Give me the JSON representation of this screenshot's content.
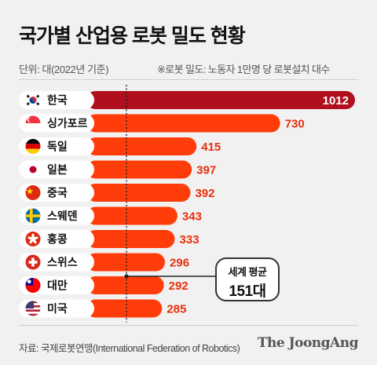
{
  "header": {
    "title": "국가별 산업용 로봇 밀도 현황",
    "unit_note": "단위: 대(2022년 기준)",
    "definition_note": "※로봇 밀도: 노동자 1만명 당 로봇설치 대수"
  },
  "callout": {
    "line1": "세계 평균",
    "line2": "151대"
  },
  "footer": {
    "source": "자료: 국제로봇연맹(International Federation of Robotics)",
    "logo": "The JoongAng"
  },
  "colors": {
    "highlight_bar": "#b00f1e",
    "bar": "#ff3d0a",
    "highlight_text": "#ffffff",
    "value_text": "#e8300c",
    "pill": "#ffffff"
  },
  "chart_data": {
    "type": "bar",
    "orientation": "horizontal",
    "categories": [
      "한국",
      "싱가포르",
      "독일",
      "일본",
      "중국",
      "스웨덴",
      "홍콩",
      "스위스",
      "대만",
      "미국"
    ],
    "flags": [
      "south-korea-flag-icon",
      "singapore-flag-icon",
      "germany-flag-icon",
      "japan-flag-icon",
      "china-flag-icon",
      "sweden-flag-icon",
      "hong-kong-flag-icon",
      "switzerland-flag-icon",
      "taiwan-flag-icon",
      "usa-flag-icon"
    ],
    "values": [
      1012,
      730,
      415,
      397,
      392,
      343,
      333,
      296,
      292,
      285
    ],
    "reference_line": {
      "value": 151,
      "label": "세계 평균 151대"
    },
    "highlight_index": 0
  }
}
